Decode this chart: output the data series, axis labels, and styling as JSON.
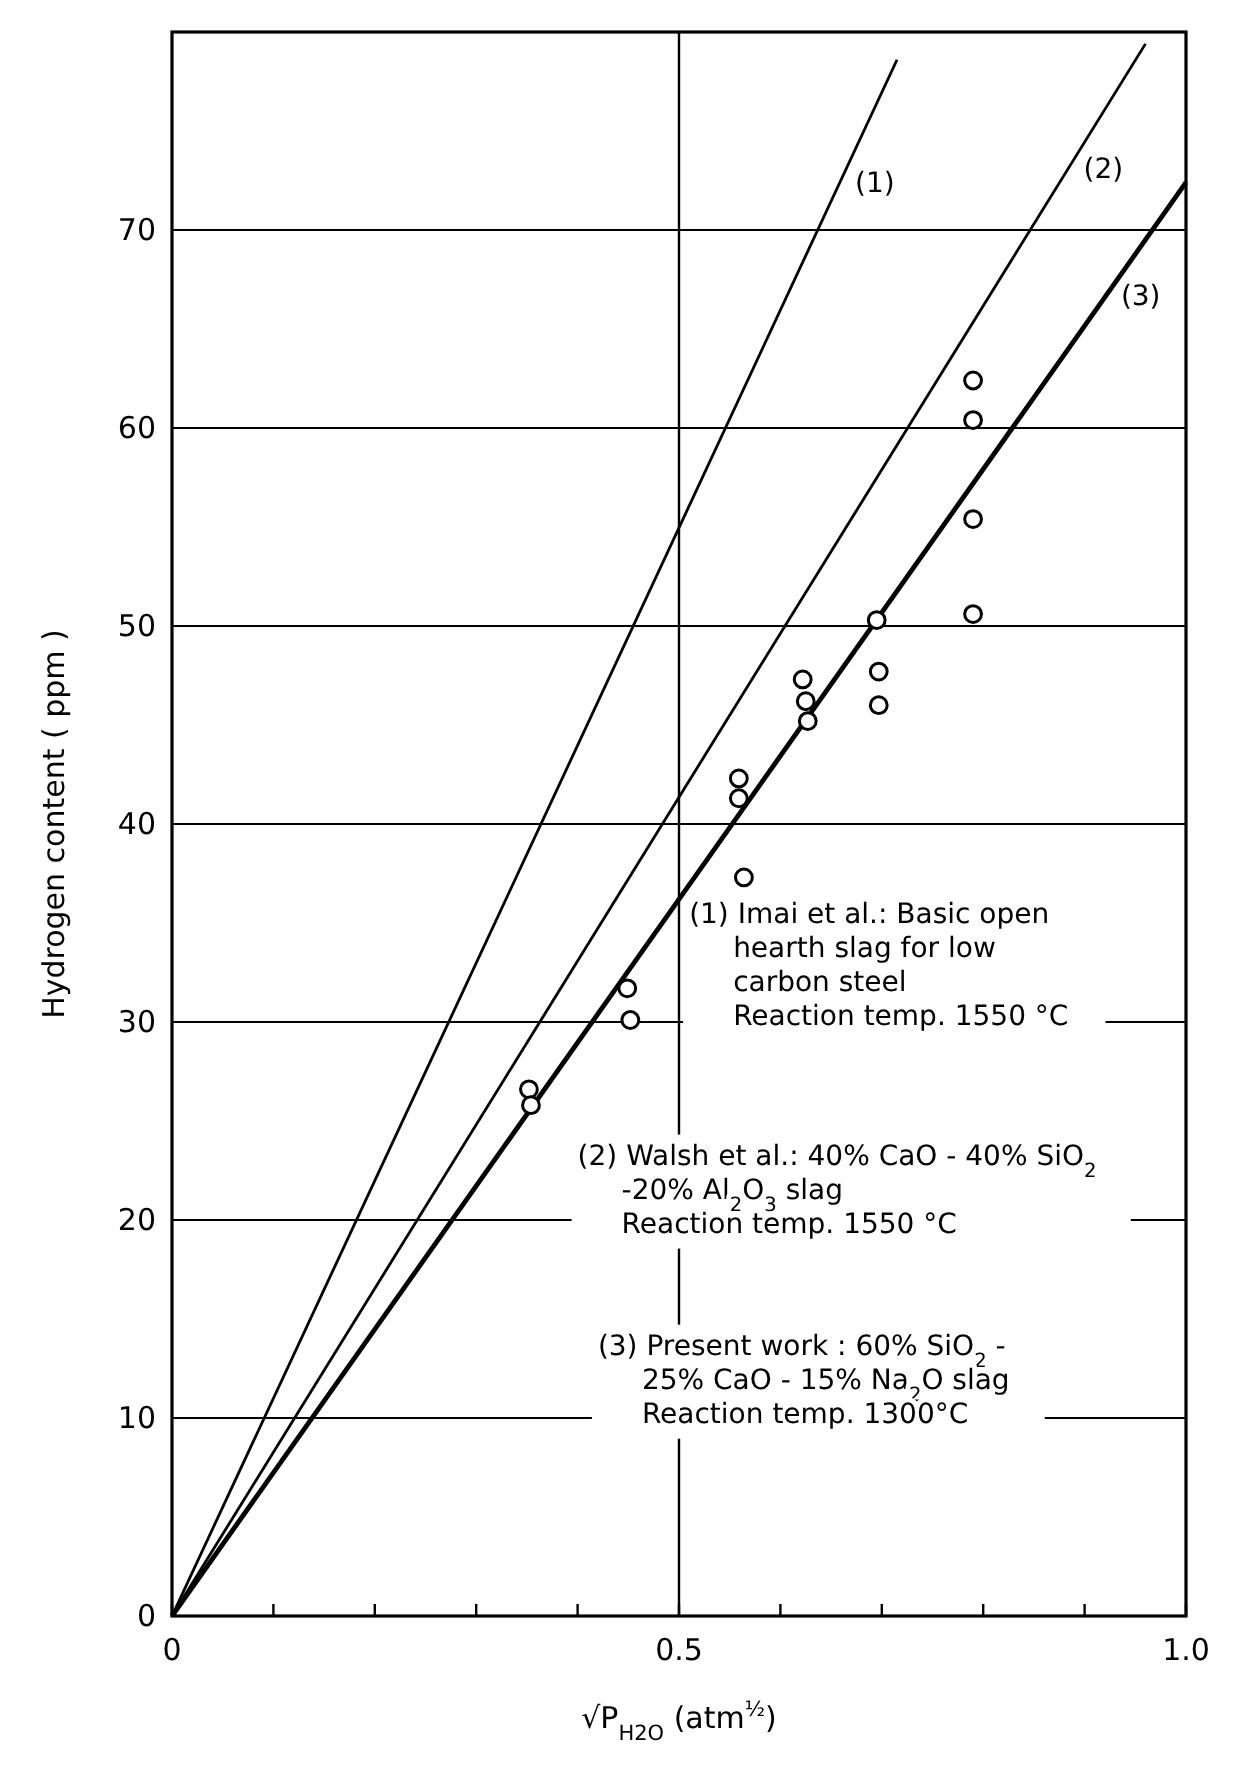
{
  "chart_data": {
    "type": "line",
    "xlabel": "√P$_{H2O}$   (atm$^{½}$)",
    "ylabel": "Hydrogen content ( ppm )",
    "xlim": [
      0,
      1.0
    ],
    "ylim": [
      0,
      80
    ],
    "xticks": [
      0,
      {
        "value": 0.1,
        "label": null
      },
      {
        "value": 0.2,
        "label": null
      },
      {
        "value": 0.3,
        "label": null
      },
      {
        "value": 0.4,
        "label": null
      },
      {
        "value": 0.5,
        "label": "0.5"
      },
      {
        "value": 0.6,
        "label": null
      },
      {
        "value": 0.7,
        "label": null
      },
      {
        "value": 0.8,
        "label": null
      },
      {
        "value": 0.9,
        "label": null
      },
      {
        "value": 1.0,
        "label": "1.0"
      }
    ],
    "yticks": [
      0,
      10,
      20,
      30,
      40,
      50,
      60,
      70
    ],
    "grid": "y",
    "ref_lines": [
      {
        "axis": "x",
        "value": 0.5
      }
    ],
    "series": [
      {
        "name": "(1)",
        "color": "#000000",
        "x": [
          0,
          0.715
        ],
        "values": [
          0,
          78.6
        ]
      },
      {
        "name": "(2)",
        "color": "#000000",
        "x": [
          0,
          0.96
        ],
        "values": [
          0,
          79.4
        ]
      },
      {
        "name": "(3)",
        "color": "#000000",
        "x": [
          0,
          1.0
        ],
        "values": [
          0,
          72.4
        ]
      },
      {
        "type": "scatter",
        "color": "#000000",
        "marker": "circle",
        "x": [
          0.352,
          0.354,
          0.449,
          0.452,
          0.559,
          0.559,
          0.564,
          0.622,
          0.625,
          0.627,
          0.695,
          0.697,
          0.697,
          0.79,
          0.79,
          0.79,
          0.79
        ],
        "values": [
          26.6,
          25.8,
          31.7,
          30.1,
          42.3,
          41.3,
          37.3,
          47.3,
          46.2,
          45.2,
          50.3,
          47.7,
          46.0,
          62.4,
          60.4,
          55.4,
          50.6
        ]
      }
    ],
    "annotations": [
      "(1) Imai et al.: Basic open\nhearth slag for low\ncarbon steel\nReaction temp. 1550 °C",
      "(2) Walsh et al.: 40% CaO - 40% SiO$_{2}$\n-20% Al$_{2}$O$_{3}$ slag\nReaction temp. 1550 °C",
      "(3) Present work : 60% SiO$_{2}$ -\n25% CaO - 15% Na$_{2}$O slag\nReaction temp. 1300°C"
    ]
  }
}
